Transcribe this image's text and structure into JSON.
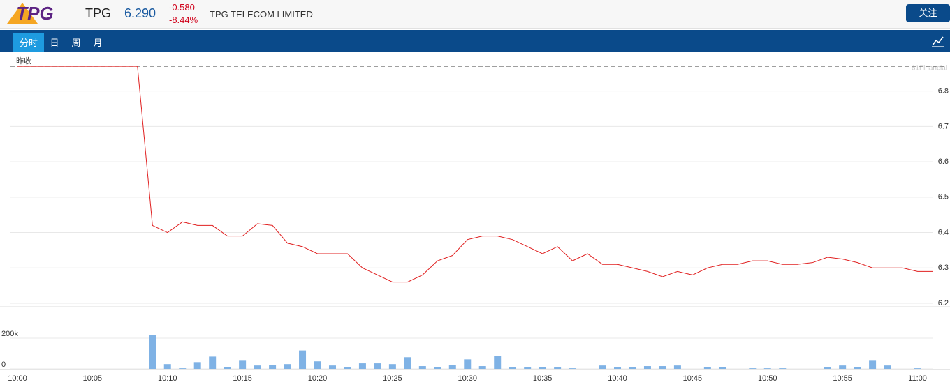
{
  "header": {
    "logo": "TPG",
    "symbol": "TPG",
    "price": "6.290",
    "change": "-0.580",
    "change_pct": "-8.44%",
    "name": "TPG TELECOM LIMITED",
    "follow_button": "关注"
  },
  "tabs": [
    "分时",
    "日",
    "周",
    "月"
  ],
  "watermark": "61Financial",
  "chart_data": [
    {
      "type": "line",
      "categories": [
        "10:00",
        null,
        null,
        null,
        null,
        "10:05",
        null,
        null,
        null,
        null,
        "10:10",
        null,
        null,
        null,
        null,
        "10:15",
        null,
        null,
        null,
        null,
        "10:20",
        null,
        null,
        null,
        null,
        "10:25",
        null,
        null,
        null,
        null,
        "10:30",
        null,
        null,
        null,
        null,
        "10:35",
        null,
        null,
        null,
        null,
        "10:40",
        null,
        null,
        null,
        null,
        "10:45",
        null,
        null,
        null,
        null,
        "10:50",
        null,
        null,
        null,
        null,
        "10:55",
        null,
        null,
        null,
        null,
        "11:00",
        null
      ],
      "color": "#e02020",
      "values": [
        6.87,
        6.87,
        6.87,
        6.87,
        6.87,
        6.87,
        6.87,
        6.87,
        6.87,
        6.42,
        6.4,
        6.43,
        6.42,
        6.42,
        6.39,
        6.39,
        6.425,
        6.42,
        6.37,
        6.36,
        6.34,
        6.34,
        6.34,
        6.3,
        6.28,
        6.26,
        6.26,
        6.28,
        6.32,
        6.335,
        6.38,
        6.39,
        6.39,
        6.38,
        6.36,
        6.34,
        6.36,
        6.32,
        6.34,
        6.31,
        6.31,
        6.3,
        6.29,
        6.275,
        6.29,
        6.28,
        6.3,
        6.31,
        6.31,
        6.32,
        6.32,
        6.31,
        6.31,
        6.315,
        6.33,
        6.325,
        6.315,
        6.3,
        6.3,
        6.3,
        6.29,
        6.29
      ],
      "reference_line": {
        "label": "昨收",
        "value": 6.87
      },
      "ylim": [
        6.2,
        6.89
      ],
      "yticks": [
        6.2,
        6.3,
        6.4,
        6.5,
        6.6,
        6.7,
        6.8
      ],
      "grid": true
    },
    {
      "type": "bar",
      "color": "#7fb2e5",
      "values": [
        0,
        0,
        0,
        0,
        0,
        0,
        0,
        0,
        0,
        222000,
        31000,
        4000,
        44000,
        80000,
        13000,
        53000,
        22000,
        27000,
        31000,
        120000,
        49000,
        22000,
        9000,
        36000,
        36000,
        31000,
        76000,
        18000,
        13000,
        27000,
        62000,
        18000,
        84000,
        9000,
        9000,
        13000,
        9000,
        4000,
        0,
        22000,
        9000,
        9000,
        18000,
        18000,
        22000,
        0,
        13000,
        13000,
        0,
        4000,
        4000,
        4000,
        0,
        0,
        9000,
        22000,
        13000,
        53000,
        22000,
        0,
        4000,
        0
      ],
      "ylim": [
        0,
        400000
      ],
      "yticks": [
        0,
        {
          "value": 200000,
          "label": "200k"
        }
      ],
      "grid": true
    }
  ]
}
